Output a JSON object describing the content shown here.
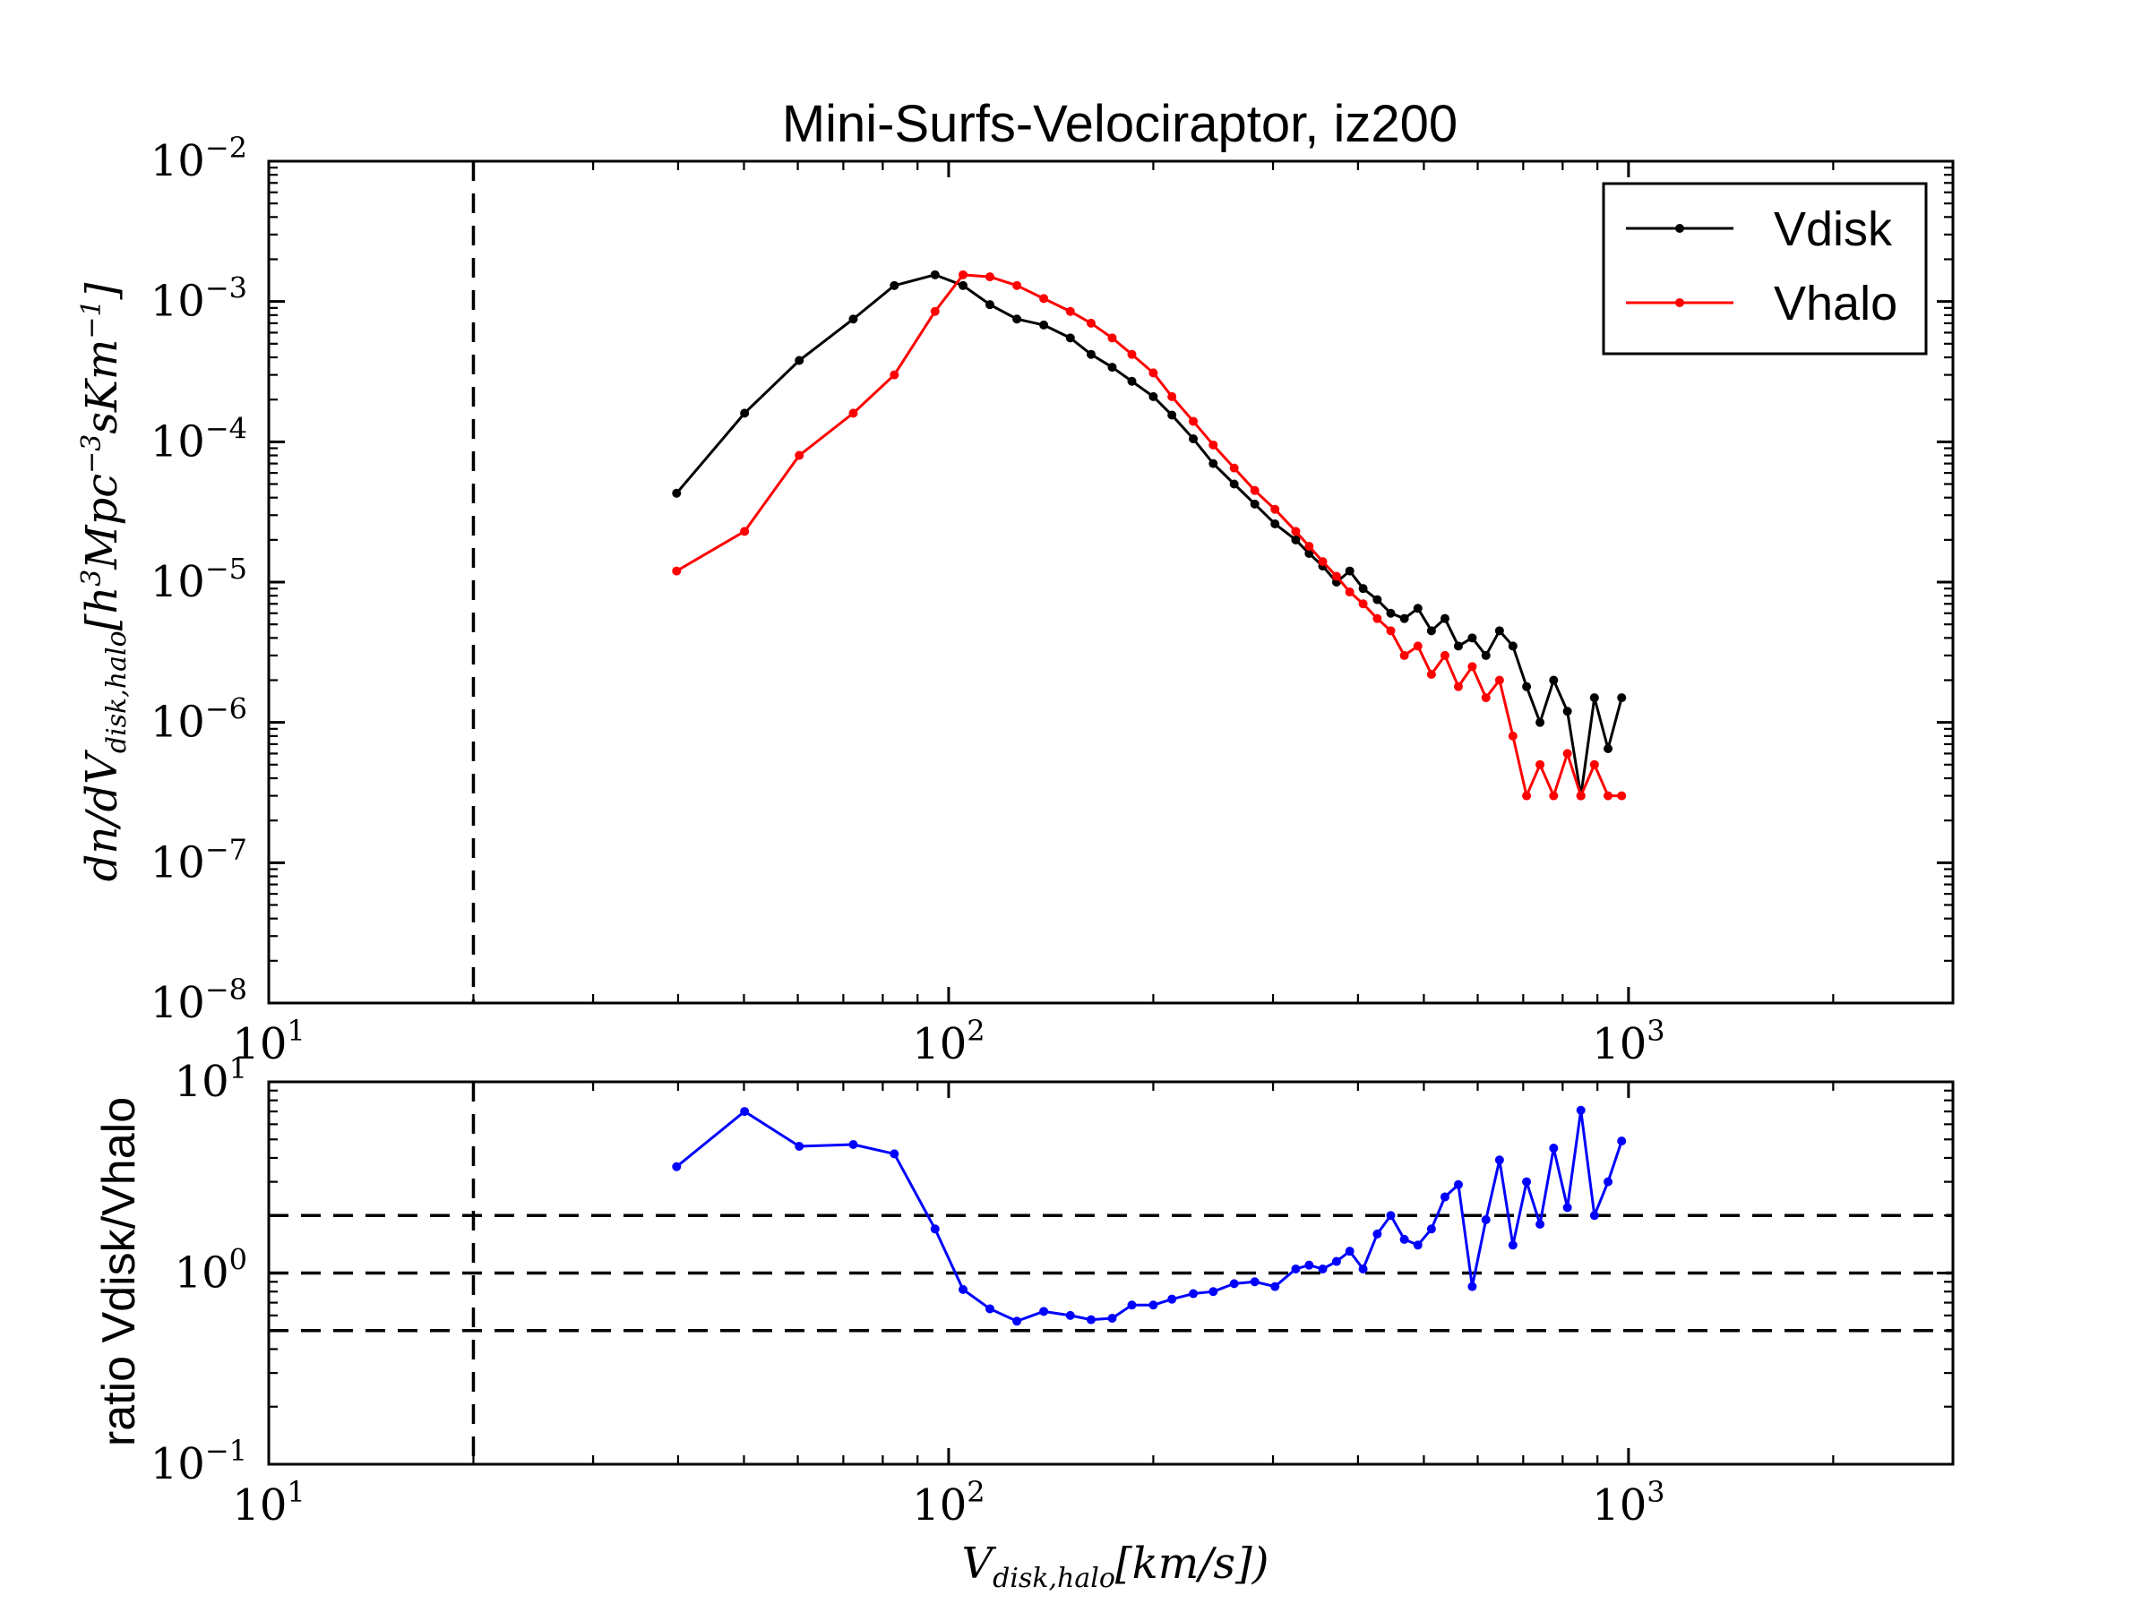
{
  "chart_data": [
    {
      "type": "line",
      "title": "Mini-Surfs-Velociraptor, iz200",
      "xlabel": "V_{disk,halo}[km/s])",
      "ylabel": "dn/dV_{disk,halo}[h^3 Mpc^{-3} s Km^{-1}]",
      "xscale": "log",
      "yscale": "log",
      "xlim": [
        10,
        3000
      ],
      "ylim": [
        1e-08,
        0.01
      ],
      "x_ticks": [
        "10^1",
        "10^2",
        "10^3"
      ],
      "y_ticks": [
        "10^-8",
        "10^-7",
        "10^-6",
        "10^-5",
        "10^-4",
        "10^-3",
        "10^-2"
      ],
      "legend_position": "top-right",
      "vertical_reference": 20,
      "series": [
        {
          "name": "Vdisk",
          "color": "#000000",
          "x": [
            39.8,
            50.1,
            60.3,
            72.4,
            83.2,
            95.5,
            105,
            115,
            126,
            138,
            151,
            162,
            174,
            186,
            200,
            213,
            229,
            245,
            263,
            282,
            302,
            324,
            339,
            355,
            372,
            389,
            407,
            427,
            447,
            468,
            490,
            513,
            537,
            562,
            589,
            617,
            646,
            676,
            708,
            741,
            776,
            813,
            851,
            891,
            933,
            977
          ],
          "y": [
            4.3e-05,
            0.00016,
            0.00038,
            0.00075,
            0.0013,
            0.00155,
            0.0013,
            0.00095,
            0.00075,
            0.00068,
            0.00055,
            0.00042,
            0.00034,
            0.00027,
            0.00021,
            0.000155,
            0.000105,
            7e-05,
            5e-05,
            3.6e-05,
            2.6e-05,
            2e-05,
            1.6e-05,
            1.3e-05,
            1e-05,
            1.2e-05,
            9e-06,
            7.5e-06,
            6e-06,
            5.5e-06,
            6.5e-06,
            4.5e-06,
            5.5e-06,
            3.5e-06,
            4e-06,
            3e-06,
            4.5e-06,
            3.5e-06,
            1.8e-06,
            1e-06,
            2e-06,
            1.2e-06,
            3e-07,
            1.5e-06,
            6.5e-07,
            1.5e-06
          ]
        },
        {
          "name": "Vhalo",
          "color": "#ff0000",
          "x": [
            39.8,
            50.1,
            60.3,
            72.4,
            83.2,
            95.5,
            105,
            115,
            126,
            138,
            151,
            162,
            174,
            186,
            200,
            213,
            229,
            245,
            263,
            282,
            302,
            324,
            339,
            355,
            372,
            389,
            407,
            427,
            447,
            468,
            490,
            513,
            537,
            562,
            589,
            617,
            646,
            676,
            708,
            741,
            776,
            813,
            851,
            891,
            933,
            977
          ],
          "y": [
            1.2e-05,
            2.3e-05,
            8e-05,
            0.00016,
            0.0003,
            0.00085,
            0.00155,
            0.0015,
            0.0013,
            0.00105,
            0.00085,
            0.0007,
            0.00055,
            0.00042,
            0.00031,
            0.00021,
            0.00014,
            9.5e-05,
            6.5e-05,
            4.5e-05,
            3.3e-05,
            2.3e-05,
            1.8e-05,
            1.4e-05,
            1.1e-05,
            8.5e-06,
            7e-06,
            5.5e-06,
            4.5e-06,
            3e-06,
            3.5e-06,
            2.2e-06,
            3e-06,
            1.8e-06,
            2.5e-06,
            1.5e-06,
            2e-06,
            8e-07,
            3e-07,
            5e-07,
            3e-07,
            6e-07,
            3e-07,
            5e-07,
            3e-07,
            3e-07
          ]
        }
      ]
    },
    {
      "type": "line",
      "title": "",
      "xlabel": "V_{disk,halo}[km/s])",
      "ylabel": "ratio Vdisk/Vhalo",
      "xscale": "log",
      "yscale": "log",
      "xlim": [
        10,
        3000
      ],
      "ylim": [
        0.1,
        10
      ],
      "x_ticks": [
        "10^1",
        "10^2",
        "10^3"
      ],
      "y_ticks": [
        "10^-1",
        "10^0",
        "10^1"
      ],
      "vertical_reference": 20,
      "horizontal_references": [
        0.5,
        1,
        2
      ],
      "series": [
        {
          "color": "#0000ff",
          "x": [
            39.8,
            50.1,
            60.3,
            72.4,
            83.2,
            95.5,
            105,
            115,
            126,
            138,
            151,
            162,
            174,
            186,
            200,
            213,
            229,
            245,
            263,
            282,
            302,
            324,
            339,
            355,
            372,
            389,
            407,
            427,
            447,
            468,
            490,
            513,
            537,
            562,
            589,
            617,
            646,
            676,
            708,
            741,
            776,
            813,
            851,
            891,
            933,
            977
          ],
          "y": [
            3.6,
            7.0,
            4.6,
            4.7,
            4.2,
            1.7,
            0.82,
            0.65,
            0.56,
            0.63,
            0.6,
            0.57,
            0.58,
            0.68,
            0.68,
            0.73,
            0.78,
            0.8,
            0.88,
            0.9,
            0.85,
            1.05,
            1.1,
            1.05,
            1.15,
            1.3,
            1.05,
            1.6,
            2.0,
            1.5,
            1.4,
            1.7,
            2.5,
            2.9,
            0.85,
            1.9,
            3.9,
            1.4,
            3.0,
            1.8,
            4.5,
            2.2,
            7.1,
            2.0,
            3.0,
            4.9
          ]
        }
      ]
    }
  ]
}
